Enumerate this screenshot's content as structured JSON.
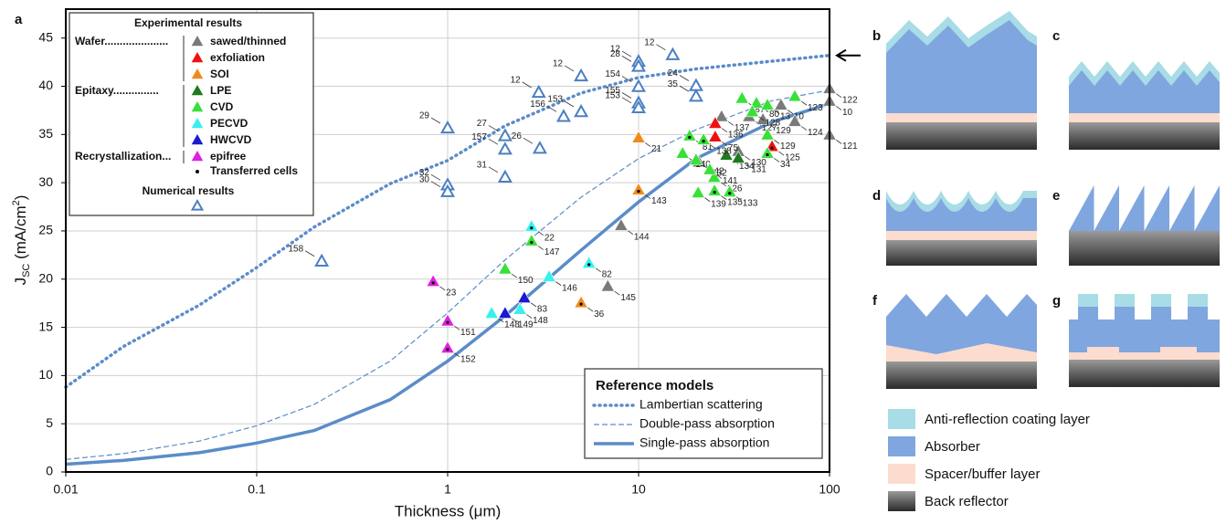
{
  "chart_data": {
    "type": "scatter",
    "panel_label": "a",
    "xlabel": "Thickness (μm)",
    "ylabel_parts": [
      "J",
      "SC",
      " (mA/cm",
      "2",
      ")"
    ],
    "xscale": "log",
    "xlim": [
      0.01,
      100
    ],
    "xticks": [
      0.01,
      0.1,
      1,
      10,
      100
    ],
    "ylim": [
      0,
      48
    ],
    "yticks": [
      0,
      5,
      10,
      15,
      20,
      25,
      30,
      35,
      40,
      45
    ],
    "grid": true,
    "legend_title": "Experimental results",
    "transferred_label": "Transferred cells",
    "groups": [
      {
        "label": "Wafer.....................",
        "series": [
          {
            "name": "sawed/thinned",
            "color": "#7a7a7a",
            "x": [
              8.1,
              6.9,
              27.2,
              37.9,
              44.8,
              55.7,
              65.8,
              33.3,
              20.7,
              100,
              100,
              100
            ],
            "values": [
              25.5,
              19.2,
              36.8,
              36.8,
              36.5,
              38.0,
              36.3,
              33.2,
              32.1,
              39.7,
              38.4,
              34.9
            ],
            "point_labels": [
              "144",
              "145",
              "137",
              "127",
              "129",
              "10",
              "124",
              "130",
              "132",
              "122",
              "10",
              "121"
            ],
            "transferred": [
              false,
              false,
              false,
              false,
              false,
              false,
              false,
              false,
              false,
              false,
              false,
              false
            ]
          },
          {
            "name": "exfoliation",
            "color": "#ee1111",
            "x": [
              25.2,
              25.2,
              50
            ],
            "values": [
              36.1,
              34.7,
              33.7
            ],
            "point_labels": [
              "136",
              "75",
              "125"
            ],
            "transferred": [
              false,
              false,
              true
            ]
          },
          {
            "name": "SOI",
            "color": "#f08a1c",
            "x": [
              10,
              10,
              5
            ],
            "values": [
              34.6,
              29.2,
              17.5
            ],
            "point_labels": [
              "21",
              "143",
              "36"
            ],
            "transferred": [
              false,
              true,
              true
            ]
          }
        ]
      },
      {
        "label": "Epitaxy...............",
        "series": [
          {
            "name": "LPE",
            "color": "#1e7a1e",
            "x": [
              28.8,
              33.3
            ],
            "values": [
              32.8,
              32.5
            ],
            "point_labels": [
              "134",
              "131"
            ],
            "transferred": [
              false,
              false
            ]
          },
          {
            "name": "CVD",
            "color": "#38e038",
            "x": [
              2,
              2.75,
              18.5,
              17,
              20,
              20.5,
              24.9,
              25,
              30,
              34.8,
              41.4,
              39.4,
              47.3,
              65.8,
              47.3,
              47.3,
              21.9,
              23.6
            ],
            "values": [
              21.0,
              23.9,
              34.8,
              33.0,
              32.3,
              28.9,
              30.5,
              29.1,
              29.0,
              38.7,
              38.2,
              37.3,
              38.0,
              38.9,
              34.9,
              33.0,
              34.4,
              31.3
            ],
            "point_labels": [
              "150",
              "147",
              "81",
              "140",
              "142",
              "139",
              "126",
              "135",
              "133",
              "87",
              "80",
              "128",
              "13",
              "123",
              "129",
              "34",
              "138",
              "141"
            ],
            "transferred": [
              false,
              true,
              true,
              false,
              false,
              false,
              false,
              true,
              true,
              false,
              false,
              false,
              false,
              false,
              false,
              true,
              true,
              false
            ]
          },
          {
            "name": "PECVD",
            "color": "#38f0f0",
            "x": [
              2.75,
              3.4,
              5.5,
              2.39,
              1.7
            ],
            "values": [
              25.4,
              20.2,
              21.6,
              16.8,
              16.4
            ],
            "point_labels": [
              "22",
              "146",
              "82",
              "148",
              "148"
            ],
            "transferred": [
              true,
              false,
              true,
              false,
              false
            ]
          },
          {
            "name": "HWCVD",
            "color": "#1a1ad0",
            "x": [
              2.52,
              2.0
            ],
            "values": [
              18.0,
              16.4
            ],
            "point_labels": [
              "83",
              "149"
            ],
            "transferred": [
              false,
              false
            ]
          }
        ]
      },
      {
        "label": "Recrystallization...",
        "series": [
          {
            "name": "epifree",
            "color": "#e020e0",
            "x": [
              0.84,
              1,
              1
            ],
            "values": [
              19.7,
              15.6,
              12.8
            ],
            "point_labels": [
              "23",
              "151",
              "152"
            ],
            "transferred": [
              true,
              true,
              true
            ]
          }
        ]
      }
    ],
    "numerical": {
      "name": "Numerical results",
      "color": "#4a7fc1",
      "x": [
        0.219,
        1,
        1,
        1,
        2,
        2,
        3.04,
        2,
        3,
        5,
        5,
        4.05,
        10,
        10,
        10,
        10,
        10,
        15.1,
        20,
        20
      ],
      "values": [
        21.8,
        35.6,
        29.7,
        29.0,
        34.8,
        33.4,
        33.5,
        30.5,
        39.3,
        41.0,
        37.3,
        36.8,
        42.5,
        42.0,
        39.9,
        38.2,
        37.7,
        43.2,
        40.0,
        38.9
      ],
      "point_labels": [
        "158",
        "29",
        "32",
        "30",
        "27",
        "157",
        "26",
        "31",
        "12",
        "12",
        "153",
        "156",
        "12",
        "28",
        "154",
        "155",
        "153",
        "12",
        "24",
        "35"
      ]
    },
    "models": {
      "title": "Reference models",
      "color": "#5b8cc8",
      "x": [
        0.01,
        0.02,
        0.05,
        0.1,
        0.2,
        0.5,
        1,
        2,
        5,
        10,
        20,
        50,
        100
      ],
      "series": [
        {
          "name": "Lambertian scattering",
          "style": "dotted",
          "values": [
            8.8,
            13.0,
            17.3,
            21.2,
            25.4,
            29.9,
            32.3,
            35.9,
            39.3,
            40.9,
            41.8,
            42.6,
            43.2
          ]
        },
        {
          "name": "Double-pass absorption",
          "style": "dashed",
          "values": [
            1.3,
            1.9,
            3.2,
            4.8,
            7.0,
            11.5,
            16.5,
            22.0,
            28.5,
            32.5,
            35.5,
            38.5,
            39.6
          ]
        },
        {
          "name": "Single-pass absorption",
          "style": "solid",
          "values": [
            0.8,
            1.2,
            2.0,
            3.0,
            4.3,
            7.5,
            11.5,
            16.2,
            23.0,
            28.0,
            32.5,
            36.3,
            38.2
          ]
        }
      ]
    }
  },
  "diagram": {
    "panels": [
      "b",
      "c",
      "d",
      "e",
      "f",
      "g"
    ],
    "legend": [
      {
        "label": "Anti-reflection coating layer",
        "color": "#a8dce6"
      },
      {
        "label": "Absorber",
        "color": "#7fa6df"
      },
      {
        "label": "Spacer/buffer layer",
        "color": "#fbdccf"
      },
      {
        "label": "Back reflector",
        "color": "#2a2a2a"
      }
    ]
  }
}
